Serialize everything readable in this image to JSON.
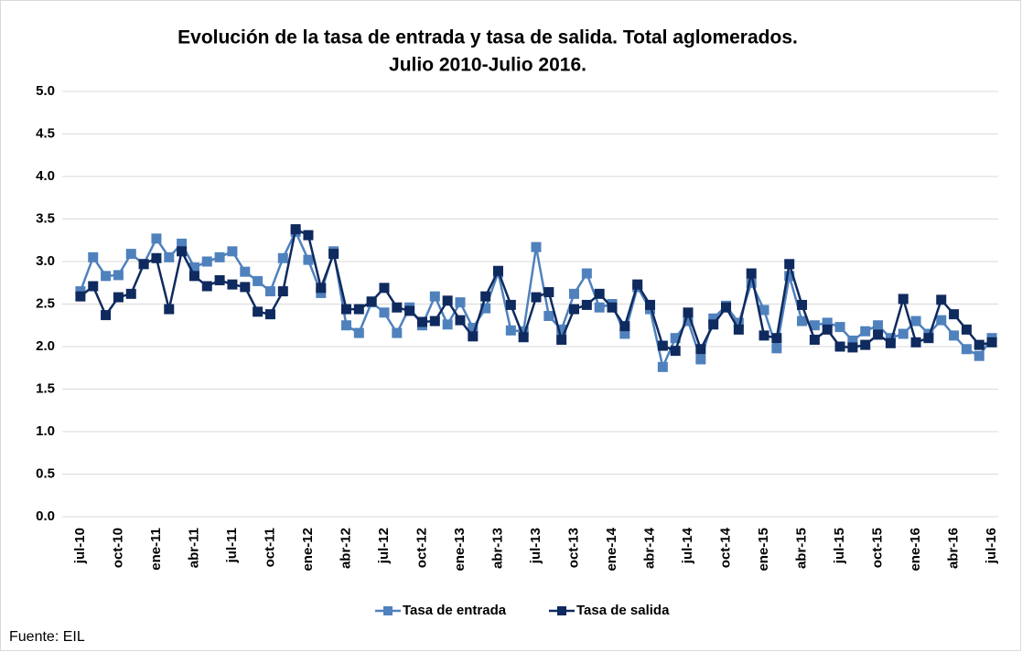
{
  "chart_data": {
    "type": "line",
    "title": "Evolución de la tasa de entrada y tasa de salida. Total aglomerados.",
    "subtitle": "Julio 2010-Julio 2016.",
    "source": "Fuente: EIL",
    "categories": [
      "jul-10",
      null,
      null,
      "oct-10",
      null,
      null,
      "ene-11",
      null,
      null,
      "abr-11",
      null,
      null,
      "jul-11",
      null,
      null,
      "oct-11",
      null,
      null,
      "ene-12",
      null,
      null,
      "abr-12",
      null,
      null,
      "jul-12",
      null,
      null,
      "oct-12",
      null,
      null,
      "ene-13",
      null,
      null,
      "abr-13",
      null,
      null,
      "jul-13",
      null,
      null,
      "oct-13",
      null,
      null,
      "ene-14",
      null,
      null,
      "abr-14",
      null,
      null,
      "jul-14",
      null,
      null,
      "oct-14",
      null,
      null,
      "ene-15",
      null,
      null,
      "abr-15",
      null,
      null,
      "jul-15",
      null,
      null,
      "oct-15",
      null,
      null,
      "ene-16",
      null,
      null,
      "abr-16",
      null,
      null,
      "jul-16"
    ],
    "series": [
      {
        "name": "Tasa de entrada",
        "color": "#4f81bd",
        "values": [
          2.65,
          3.05,
          2.83,
          2.84,
          3.09,
          2.97,
          3.27,
          3.05,
          3.21,
          2.93,
          3.0,
          3.05,
          3.12,
          2.88,
          2.77,
          2.65,
          3.04,
          3.35,
          3.02,
          2.63,
          3.12,
          2.25,
          2.16,
          2.52,
          2.4,
          2.16,
          2.46,
          2.25,
          2.59,
          2.26,
          2.52,
          2.22,
          2.45,
          2.87,
          2.19,
          2.18,
          3.17,
          2.36,
          2.2,
          2.62,
          2.86,
          2.46,
          2.5,
          2.15,
          2.7,
          2.44,
          1.76,
          2.1,
          2.3,
          1.85,
          2.33,
          2.48,
          2.28,
          2.75,
          2.43,
          1.98,
          2.83,
          2.3,
          2.25,
          2.28,
          2.23,
          2.07,
          2.18,
          2.25,
          2.1,
          2.15,
          2.3,
          2.15,
          2.31,
          2.13,
          1.97,
          1.89,
          2.1
        ]
      },
      {
        "name": "Tasa de salida",
        "color": "#0f2a5e",
        "values": [
          2.59,
          2.71,
          2.37,
          2.58,
          2.62,
          2.97,
          3.04,
          2.44,
          3.12,
          2.83,
          2.71,
          2.78,
          2.73,
          2.7,
          2.41,
          2.38,
          2.65,
          3.38,
          3.31,
          2.69,
          3.09,
          2.44,
          2.44,
          2.53,
          2.69,
          2.46,
          2.42,
          2.29,
          2.3,
          2.54,
          2.31,
          2.12,
          2.59,
          2.89,
          2.49,
          2.11,
          2.58,
          2.64,
          2.08,
          2.44,
          2.49,
          2.62,
          2.46,
          2.24,
          2.73,
          2.49,
          2.01,
          1.95,
          2.4,
          1.97,
          2.26,
          2.46,
          2.2,
          2.86,
          2.13,
          2.1,
          2.97,
          2.49,
          2.08,
          2.2,
          2.0,
          1.99,
          2.02,
          2.14,
          2.04,
          2.56,
          2.05,
          2.1,
          2.55,
          2.38,
          2.2,
          2.02,
          2.05
        ]
      }
    ],
    "ylim": [
      0,
      5
    ],
    "yticks": [
      {
        "value": 0,
        "label": "0.0"
      },
      {
        "value": 0.5,
        "label": "0.5"
      },
      {
        "value": 1,
        "label": "1.0"
      },
      {
        "value": 1.5,
        "label": "1.5"
      },
      {
        "value": 2,
        "label": "2.0"
      },
      {
        "value": 2.5,
        "label": "2.5"
      },
      {
        "value": 3,
        "label": "3.0"
      },
      {
        "value": 3.5,
        "label": "3.5"
      },
      {
        "value": 4,
        "label": "4.0"
      },
      {
        "value": 4.5,
        "label": "4.5"
      },
      {
        "value": 5,
        "label": "5.0"
      }
    ],
    "grid": true,
    "legend": "bottom"
  }
}
